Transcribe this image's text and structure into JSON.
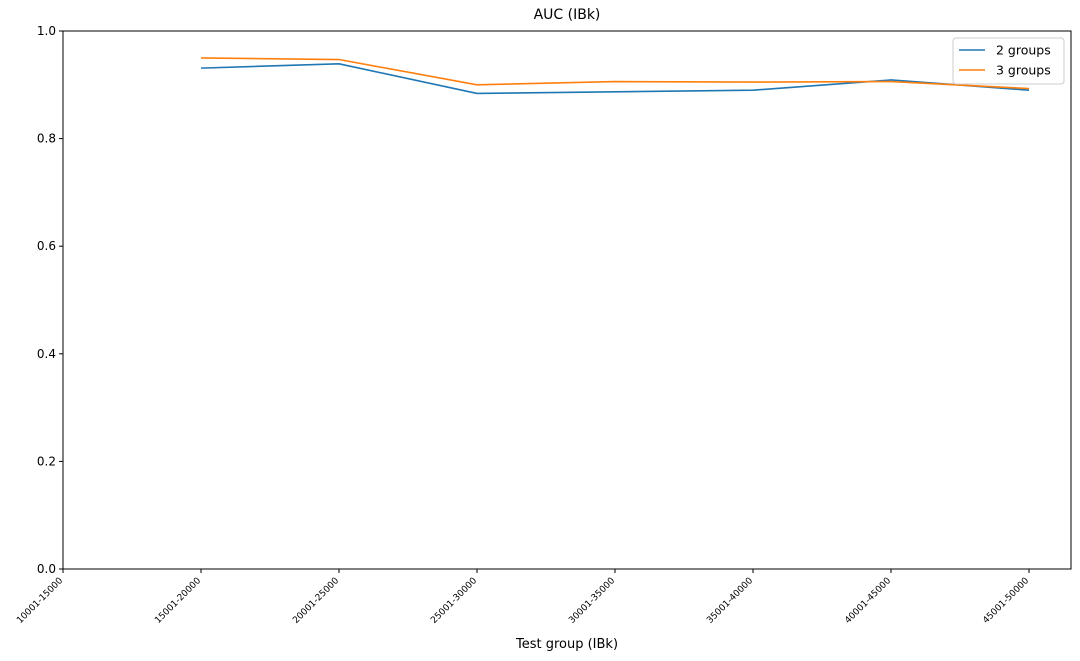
{
  "chart_data": {
    "type": "line",
    "title": "AUC (IBk)",
    "xlabel": "Test group (IBk)",
    "ylabel": "",
    "categories": [
      "10001-15000",
      "15001-20000",
      "20001-25000",
      "25001-30000",
      "30001-35000",
      "35001-40000",
      "40001-45000",
      "45001-50000"
    ],
    "ylim": [
      0,
      1.0
    ],
    "yticks": [
      "0.0",
      "0.2",
      "0.4",
      "0.6",
      "0.8",
      "1.0"
    ],
    "grid": false,
    "legend_position": "top-right",
    "series": [
      {
        "name": "2 groups",
        "color": "#1f77b4",
        "values": [
          null,
          0.931,
          0.939,
          0.884,
          0.887,
          0.89,
          0.909,
          0.89
        ]
      },
      {
        "name": "3 groups",
        "color": "#ff7f0e",
        "values": [
          null,
          0.95,
          0.947,
          0.9,
          0.906,
          0.905,
          0.906,
          0.893
        ]
      }
    ]
  }
}
